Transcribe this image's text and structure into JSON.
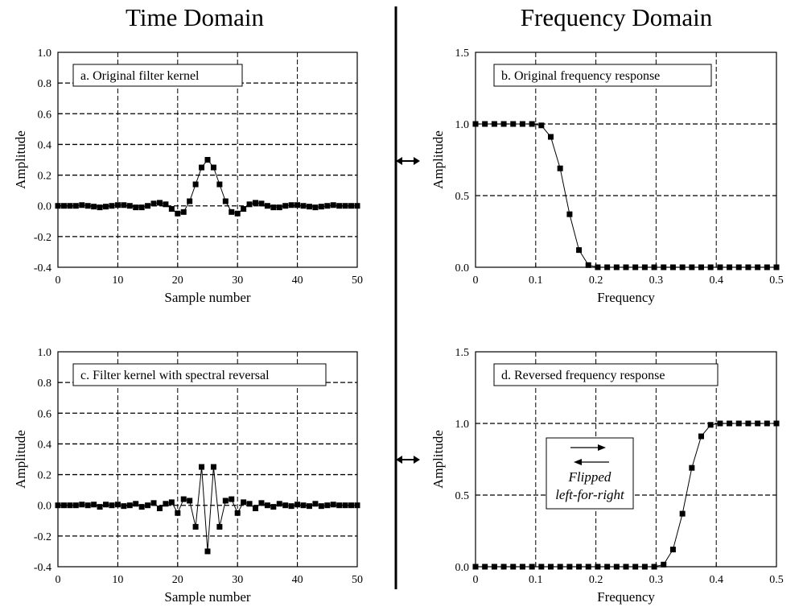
{
  "headings": {
    "left": "Time Domain",
    "right": "Frequency Domain"
  },
  "chart_data": [
    {
      "id": "a",
      "type": "line",
      "title": "a.  Original filter kernel",
      "xlabel": "Sample number",
      "ylabel": "Amplitude",
      "xlim": [
        0,
        50
      ],
      "ylim": [
        -0.4,
        1.0
      ],
      "xticks": [
        0,
        10,
        20,
        30,
        40,
        50
      ],
      "yticks": [
        -0.4,
        -0.2,
        0.0,
        0.2,
        0.4,
        0.6,
        0.8,
        1.0
      ],
      "xtick_labels": [
        "0",
        "10",
        "20",
        "30",
        "40",
        "50"
      ],
      "ytick_labels": [
        "-0.4",
        "-0.2",
        "0.0",
        "0.2",
        "0.4",
        "0.6",
        "0.8",
        "1.0"
      ],
      "grid": true,
      "markers": "square",
      "series": [
        {
          "x": [
            0,
            1,
            2,
            3,
            4,
            5,
            6,
            7,
            8,
            9,
            10,
            11,
            12,
            13,
            14,
            15,
            16,
            17,
            18,
            19,
            20,
            21,
            22,
            23,
            24,
            25,
            26,
            27,
            28,
            29,
            30,
            31,
            32,
            33,
            34,
            35,
            36,
            37,
            38,
            39,
            40,
            41,
            42,
            43,
            44,
            45,
            46,
            47,
            48,
            49,
            50
          ],
          "y": [
            0,
            0,
            0,
            0,
            0.005,
            0,
            -0.005,
            -0.01,
            -0.005,
            0,
            0.005,
            0.005,
            0,
            -0.01,
            -0.01,
            0,
            0.015,
            0.02,
            0.01,
            -0.02,
            -0.05,
            -0.04,
            0.03,
            0.14,
            0.25,
            0.3,
            0.25,
            0.14,
            0.03,
            -0.04,
            -0.05,
            -0.02,
            0.01,
            0.02,
            0.015,
            0,
            -0.01,
            -0.01,
            0,
            0.005,
            0.005,
            0,
            -0.005,
            -0.01,
            -0.005,
            0,
            0.005,
            0,
            0,
            0,
            0
          ]
        }
      ]
    },
    {
      "id": "b",
      "type": "line",
      "title": "b.  Original frequency response",
      "xlabel": "Frequency",
      "ylabel": "Amplitude",
      "xlim": [
        0,
        0.5
      ],
      "ylim": [
        0,
        1.5
      ],
      "xticks": [
        0,
        0.1,
        0.2,
        0.3,
        0.4,
        0.5
      ],
      "yticks": [
        0,
        0.5,
        1.0,
        1.5
      ],
      "xtick_labels": [
        "0",
        "0.1",
        "0.2",
        "0.3",
        "0.4",
        "0.5"
      ],
      "ytick_labels": [
        "0.0",
        "0.5",
        "1.0",
        "1.5"
      ],
      "grid": true,
      "markers": "square",
      "series": [
        {
          "x": [
            0,
            0.0156,
            0.0313,
            0.0469,
            0.0625,
            0.0781,
            0.0938,
            0.1094,
            0.125,
            0.1406,
            0.1563,
            0.1719,
            0.1875,
            0.2031,
            0.2188,
            0.2344,
            0.25,
            0.2656,
            0.2813,
            0.2969,
            0.3125,
            0.3281,
            0.3438,
            0.3594,
            0.375,
            0.3906,
            0.4063,
            0.4219,
            0.4375,
            0.4531,
            0.4688,
            0.4844,
            0.5
          ],
          "y": [
            1,
            1,
            1,
            1,
            1,
            1,
            1,
            0.99,
            0.91,
            0.69,
            0.37,
            0.12,
            0.015,
            0,
            0,
            0,
            0,
            0,
            0,
            0,
            0,
            0,
            0,
            0,
            0,
            0,
            0,
            0,
            0,
            0,
            0,
            0,
            0
          ]
        }
      ]
    },
    {
      "id": "c",
      "type": "line",
      "title": "c.  Filter kernel with spectral reversal",
      "xlabel": "Sample number",
      "ylabel": "Amplitude",
      "xlim": [
        0,
        50
      ],
      "ylim": [
        -0.4,
        1.0
      ],
      "xticks": [
        0,
        10,
        20,
        30,
        40,
        50
      ],
      "yticks": [
        -0.4,
        -0.2,
        0.0,
        0.2,
        0.4,
        0.6,
        0.8,
        1.0
      ],
      "xtick_labels": [
        "0",
        "10",
        "20",
        "30",
        "40",
        "50"
      ],
      "ytick_labels": [
        "-0.4",
        "-0.2",
        "0.0",
        "0.2",
        "0.4",
        "0.6",
        "0.8",
        "1.0"
      ],
      "grid": true,
      "markers": "square",
      "series": [
        {
          "x": [
            0,
            1,
            2,
            3,
            4,
            5,
            6,
            7,
            8,
            9,
            10,
            11,
            12,
            13,
            14,
            15,
            16,
            17,
            18,
            19,
            20,
            21,
            22,
            23,
            24,
            25,
            26,
            27,
            28,
            29,
            30,
            31,
            32,
            33,
            34,
            35,
            36,
            37,
            38,
            39,
            40,
            41,
            42,
            43,
            44,
            45,
            46,
            47,
            48,
            49,
            50
          ],
          "y": [
            0,
            0,
            0,
            0,
            0.005,
            0,
            0.005,
            -0.01,
            0.005,
            0,
            0.005,
            -0.005,
            0,
            0.01,
            -0.01,
            0,
            0.015,
            -0.02,
            0.01,
            0.02,
            -0.05,
            0.04,
            0.03,
            -0.14,
            0.25,
            -0.3,
            0.25,
            -0.14,
            0.03,
            0.04,
            -0.05,
            0.02,
            0.01,
            -0.02,
            0.015,
            0,
            -0.01,
            0.01,
            0,
            -0.005,
            0.005,
            0,
            -0.005,
            0.01,
            -0.005,
            0,
            0.005,
            0,
            0,
            0,
            0
          ]
        }
      ]
    },
    {
      "id": "d",
      "type": "line",
      "title": "d.  Reversed frequency response",
      "xlabel": "Frequency",
      "ylabel": "Amplitude",
      "xlim": [
        0,
        0.5
      ],
      "ylim": [
        0,
        1.5
      ],
      "xticks": [
        0,
        0.1,
        0.2,
        0.3,
        0.4,
        0.5
      ],
      "yticks": [
        0,
        0.5,
        1.0,
        1.5
      ],
      "xtick_labels": [
        "0",
        "0.1",
        "0.2",
        "0.3",
        "0.4",
        "0.5"
      ],
      "ytick_labels": [
        "0.0",
        "0.5",
        "1.0",
        "1.5"
      ],
      "grid": true,
      "markers": "square",
      "annotation": {
        "line1": "Flipped",
        "line2": "left-for-right"
      },
      "series": [
        {
          "x": [
            0,
            0.0156,
            0.0313,
            0.0469,
            0.0625,
            0.0781,
            0.0938,
            0.1094,
            0.125,
            0.1406,
            0.1563,
            0.1719,
            0.1875,
            0.2031,
            0.2188,
            0.2344,
            0.25,
            0.2656,
            0.2813,
            0.2969,
            0.3125,
            0.3281,
            0.3438,
            0.3594,
            0.375,
            0.3906,
            0.4063,
            0.4219,
            0.4375,
            0.4531,
            0.4688,
            0.4844,
            0.5
          ],
          "y": [
            0,
            0,
            0,
            0,
            0,
            0,
            0,
            0,
            0,
            0,
            0,
            0,
            0,
            0,
            0,
            0,
            0,
            0,
            0,
            0,
            0.015,
            0.12,
            0.37,
            0.69,
            0.91,
            0.99,
            1,
            1,
            1,
            1,
            1,
            1,
            1
          ]
        }
      ]
    }
  ]
}
